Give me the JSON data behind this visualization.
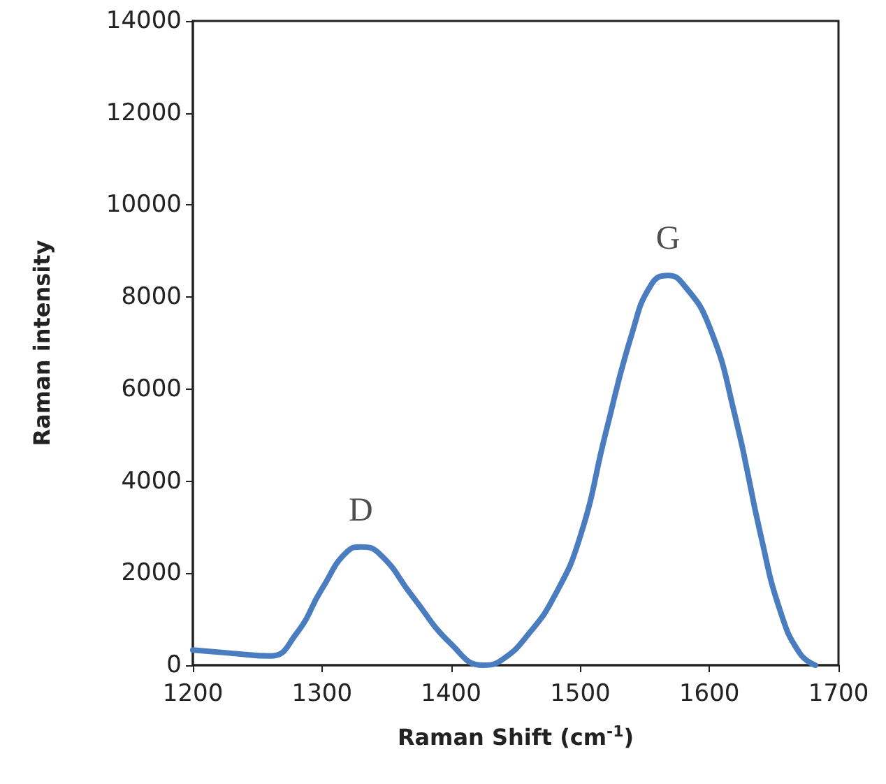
{
  "chart_data": {
    "type": "line",
    "xlabel": "Raman Shift (cm$^{-1}$)",
    "ylabel": "Raman intensity",
    "x": [
      1200,
      1230,
      1260,
      1280,
      1300,
      1320,
      1330,
      1345,
      1370,
      1400,
      1425,
      1440,
      1460,
      1480,
      1500,
      1520,
      1540,
      1555,
      1568,
      1580,
      1600,
      1620,
      1640,
      1655,
      1670,
      1682
    ],
    "series": [
      {
        "color": "#4a7dbf",
        "values": [
          330,
          260,
          200,
          680,
          1660,
          2480,
          2570,
          2410,
          1500,
          460,
          0,
          130,
          680,
          1500,
          2800,
          5080,
          7200,
          8270,
          8470,
          8270,
          7360,
          5410,
          2800,
          1170,
          260,
          0
        ]
      }
    ],
    "annotations": [
      "D",
      "G"
    ],
    "xlim": [
      1200,
      1700
    ],
    "xticks": [
      1200,
      1300,
      1400,
      1500,
      1600,
      1700
    ],
    "ylim": [
      0,
      14000
    ],
    "yticks": [
      0,
      2000,
      4000,
      6000,
      8000,
      10000,
      12000,
      14000
    ],
    "grid": false,
    "marker": "none",
    "line_style": "solid"
  }
}
